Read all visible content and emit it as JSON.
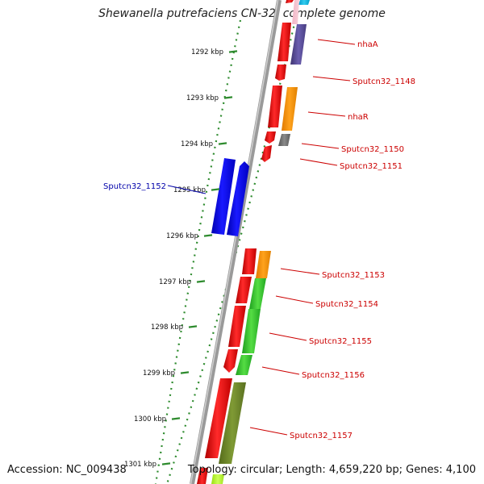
{
  "title": "Shewanella putrefaciens CN-32, complete genome",
  "footer": {
    "accession": "Accession: NC_009438",
    "topology": "Topology: circular; Length: 4,659,220 bp; Genes: 4,100"
  },
  "colors": {
    "forward_cds": "#ee0000",
    "backbone": "#888888",
    "tick": "#2e8b2e",
    "label_red": "#cc0000",
    "label_blue": "#0000aa"
  },
  "ticks": [
    {
      "label": "1292 kbp"
    },
    {
      "label": "1293 kbp"
    },
    {
      "label": "1294 kbp"
    },
    {
      "label": "1295 kbp"
    },
    {
      "label": "1296 kbp"
    },
    {
      "label": "1297 kbp"
    },
    {
      "label": "1298 kbp"
    },
    {
      "label": "1299 kbp"
    },
    {
      "label": "1300 kbp"
    },
    {
      "label": "1301 kbp"
    }
  ],
  "genes": [
    {
      "label": "nhaA",
      "color": "red"
    },
    {
      "label": "Sputcn32_1148",
      "color": "red"
    },
    {
      "label": "nhaR",
      "color": "red"
    },
    {
      "label": "Sputcn32_1150",
      "color": "red"
    },
    {
      "label": "Sputcn32_1151",
      "color": "red"
    },
    {
      "label": "Sputcn32_1152",
      "color": "blue"
    },
    {
      "label": "Sputcn32_1153",
      "color": "red"
    },
    {
      "label": "Sputcn32_1154",
      "color": "red"
    },
    {
      "label": "Sputcn32_1155",
      "color": "red"
    },
    {
      "label": "Sputcn32_1156",
      "color": "red"
    },
    {
      "label": "Sputcn32_1157",
      "color": "red"
    }
  ]
}
